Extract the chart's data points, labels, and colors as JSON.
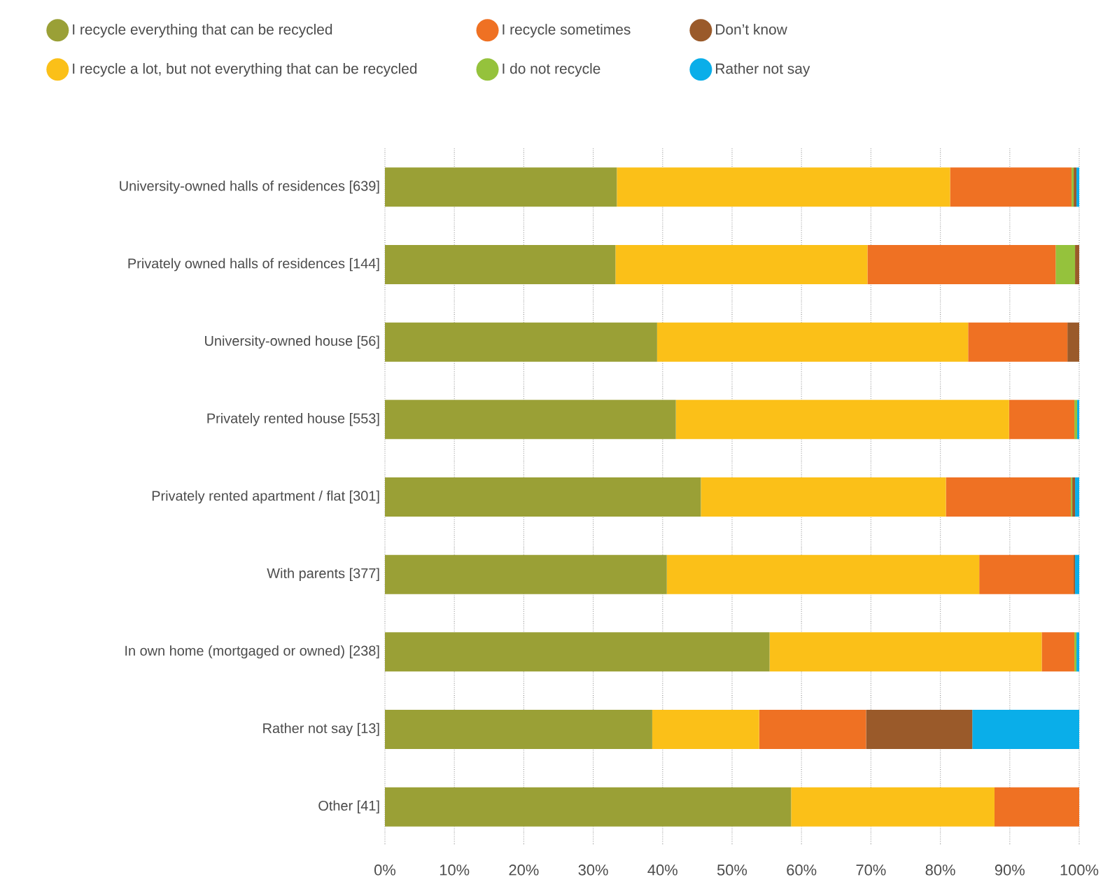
{
  "chart_data": {
    "type": "bar",
    "orientation": "horizontal",
    "stacked": true,
    "categories": [
      "University-owned halls of residences [639]",
      "Privately owned halls of residences [144]",
      "University-owned house [56]",
      "Privately rented house [553]",
      "Privately rented apartment / flat [301]",
      "With parents [377]",
      "In own home (mortgaged or owned) [238]",
      "Rather not say [13]",
      "Other [41]"
    ],
    "series": [
      {
        "name": "I recycle everything that can be recycled",
        "color": "#9aa036",
        "values": [
          33.4,
          33.2,
          39.2,
          41.9,
          45.5,
          40.6,
          55.4,
          38.5,
          58.5
        ]
      },
      {
        "name": "I recycle a lot, but not everything that can be recycled",
        "color": "#fbc018",
        "values": [
          48.0,
          36.3,
          44.8,
          48.0,
          35.3,
          45.0,
          39.2,
          15.4,
          29.3
        ]
      },
      {
        "name": "I recycle sometimes",
        "color": "#ef7123",
        "values": [
          17.5,
          27.1,
          14.3,
          9.4,
          18.0,
          13.6,
          4.7,
          15.4,
          12.2
        ]
      },
      {
        "name": "I do not recycle",
        "color": "#95c23c",
        "values": [
          0.3,
          2.8,
          0,
          0.4,
          0.2,
          0,
          0.3,
          0,
          0
        ]
      },
      {
        "name": "Don’t know",
        "color": "#9a5a2a",
        "values": [
          0.4,
          0.6,
          1.7,
          0,
          0.4,
          0.2,
          0,
          15.3,
          0
        ]
      },
      {
        "name": "Rather not say",
        "color": "#0aaee9",
        "values": [
          0.4,
          0,
          0,
          0.3,
          0.6,
          0.6,
          0.4,
          15.4,
          0
        ]
      }
    ],
    "xlim": [
      0,
      100
    ],
    "xticks": [
      {
        "value": 0,
        "label": "0%"
      },
      {
        "value": 10,
        "label": "10%"
      },
      {
        "value": 20,
        "label": "20%"
      },
      {
        "value": 30,
        "label": "30%"
      },
      {
        "value": 40,
        "label": "40%"
      },
      {
        "value": 50,
        "label": "50%"
      },
      {
        "value": 60,
        "label": "60%"
      },
      {
        "value": 70,
        "label": "70%"
      },
      {
        "value": 80,
        "label": "80%"
      },
      {
        "value": 90,
        "label": "90%"
      },
      {
        "value": 100,
        "label": "100%"
      }
    ],
    "grid": "x",
    "legend": "top"
  }
}
